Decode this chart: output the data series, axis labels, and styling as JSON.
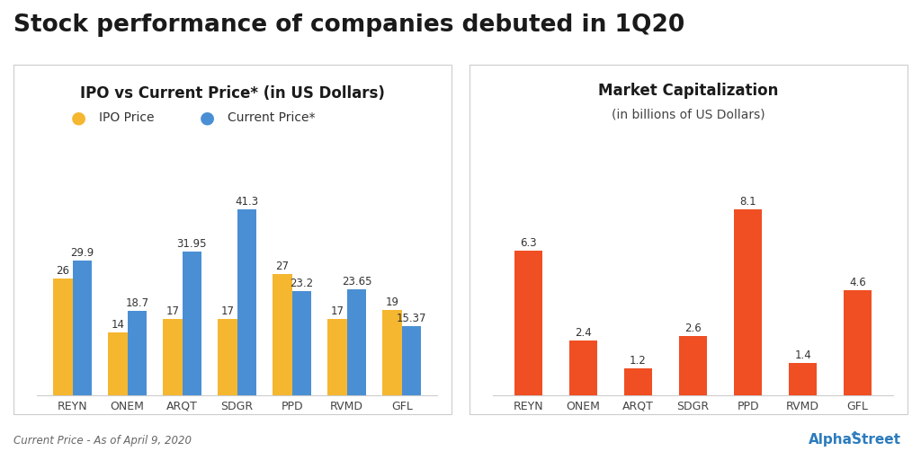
{
  "title": "Stock performance of companies debuted in 1Q20",
  "left_chart_title_bold": "IPO vs Current Price",
  "left_chart_title_suffix": " (in US Dollars)",
  "right_chart_title": "Market Capitalization",
  "right_chart_subtitle": "(in billions of US Dollars)",
  "companies": [
    "REYN",
    "ONEM",
    "ARQT",
    "SDGR",
    "PPD",
    "RVMD",
    "GFL"
  ],
  "ipo_prices": [
    26,
    14,
    17,
    17,
    27,
    17,
    19
  ],
  "current_prices": [
    29.9,
    18.7,
    31.95,
    41.3,
    23.2,
    23.65,
    15.37
  ],
  "market_caps": [
    6.3,
    2.4,
    1.2,
    2.6,
    8.1,
    1.4,
    4.6
  ],
  "ipo_color": "#F5B730",
  "current_color": "#4A8FD4",
  "mktcap_color": "#F04E23",
  "legend_ipo": "IPO Price",
  "legend_current": "Current Price*",
  "footnote": "Current Price - As of April 9, 2020",
  "bg_color": "#FFFFFF",
  "panel_bg": "#FFFFFF",
  "panel_border": "#CCCCCC",
  "title_fontsize": 19,
  "chart_title_fontsize": 12,
  "chart_subtitle_fontsize": 10,
  "bar_label_fontsize": 8.5,
  "tick_fontsize": 9,
  "legend_fontsize": 10,
  "footnote_fontsize": 8.5
}
